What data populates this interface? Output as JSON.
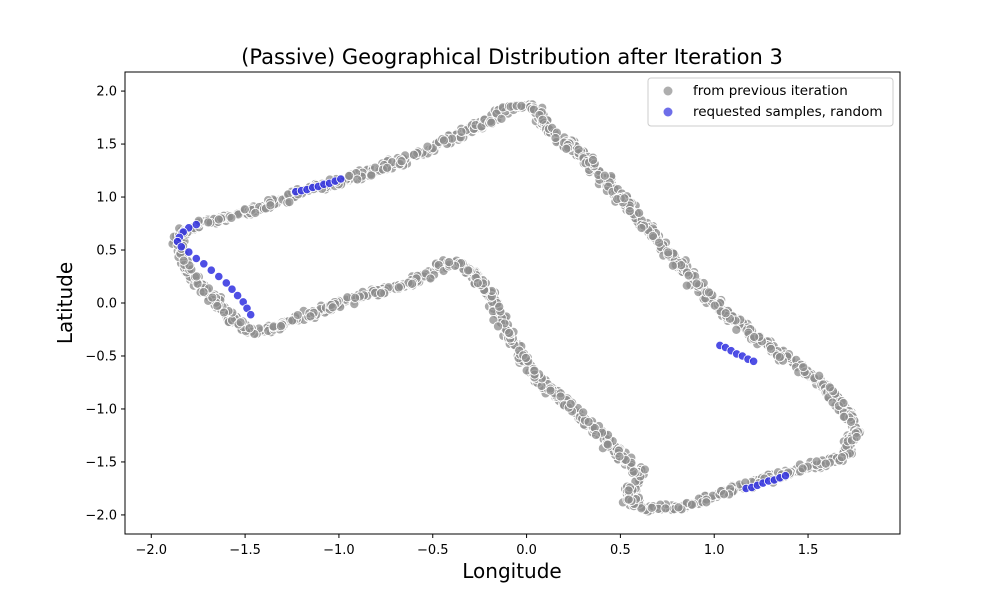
{
  "chart_data": {
    "type": "scatter",
    "title": "(Passive) Geographical Distribution after Iteration 3",
    "xlabel": "Longitude",
    "ylabel": "Latitude",
    "xlim": [
      -2.14,
      1.99
    ],
    "ylim": [
      -2.18,
      2.18
    ],
    "xticks": [
      -2.0,
      -1.5,
      -1.0,
      -0.5,
      0.0,
      0.5,
      1.0,
      1.5
    ],
    "xtick_labels": [
      "−2.0",
      "−1.5",
      "−1.0",
      "−0.5",
      "0.0",
      "0.5",
      "1.0",
      "1.5"
    ],
    "yticks": [
      -2.0,
      -1.5,
      -1.0,
      -0.5,
      0.0,
      0.5,
      1.0,
      1.5,
      2.0
    ],
    "ytick_labels": [
      "−2.0",
      "−1.5",
      "−1.0",
      "−0.5",
      "0.0",
      "0.5",
      "1.0",
      "1.5",
      "2.0"
    ],
    "grid": false,
    "legend_position": "top-right",
    "series": [
      {
        "name": "from previous iteration",
        "color": "#8c8c8c",
        "edge_color": "#ffffff",
        "path": [
          [
            -1.2,
            1.05
          ],
          [
            -0.8,
            1.25
          ],
          [
            -0.45,
            1.5
          ],
          [
            -0.3,
            1.65
          ],
          [
            -0.2,
            1.7
          ],
          [
            -0.1,
            1.85
          ],
          [
            0.05,
            1.85
          ],
          [
            0.1,
            1.65
          ],
          [
            0.3,
            1.4
          ],
          [
            0.5,
            1.0
          ],
          [
            0.75,
            0.5
          ],
          [
            1.0,
            0.0
          ],
          [
            1.2,
            -0.3
          ],
          [
            1.45,
            -0.6
          ],
          [
            1.6,
            -0.8
          ],
          [
            1.72,
            -1.05
          ],
          [
            1.75,
            -1.2
          ],
          [
            1.7,
            -1.45
          ],
          [
            1.4,
            -1.6
          ],
          [
            1.1,
            -1.75
          ],
          [
            0.9,
            -1.9
          ],
          [
            0.75,
            -1.95
          ],
          [
            0.55,
            -1.9
          ],
          [
            0.6,
            -1.6
          ],
          [
            0.45,
            -1.35
          ],
          [
            0.25,
            -1.0
          ],
          [
            0.05,
            -0.7
          ],
          [
            -0.1,
            -0.3
          ],
          [
            -0.2,
            0.1
          ],
          [
            -0.3,
            0.3
          ],
          [
            -0.4,
            0.4
          ],
          [
            -0.6,
            0.2
          ],
          [
            -1.0,
            0.0
          ],
          [
            -1.3,
            -0.2
          ],
          [
            -1.45,
            -0.3
          ],
          [
            -1.6,
            -0.1
          ],
          [
            -1.7,
            0.1
          ],
          [
            -1.8,
            0.3
          ],
          [
            -1.85,
            0.5
          ],
          [
            -1.85,
            0.65
          ],
          [
            -1.75,
            0.75
          ],
          [
            -1.5,
            0.85
          ],
          [
            -1.3,
            0.97
          ],
          [
            -1.2,
            1.05
          ]
        ]
      },
      {
        "name": "requested samples, random",
        "color": "#3030e0",
        "edge_color": "#ffffff",
        "points": [
          [
            -1.23,
            1.05
          ],
          [
            -1.2,
            1.06
          ],
          [
            -1.17,
            1.07
          ],
          [
            -1.14,
            1.09
          ],
          [
            -1.11,
            1.1
          ],
          [
            -1.08,
            1.12
          ],
          [
            -1.05,
            1.13
          ],
          [
            -1.02,
            1.15
          ],
          [
            -0.99,
            1.17
          ],
          [
            -1.76,
            0.74
          ],
          [
            -1.8,
            0.71
          ],
          [
            -1.83,
            0.67
          ],
          [
            -1.85,
            0.62
          ],
          [
            -1.86,
            0.58
          ],
          [
            -1.84,
            0.53
          ],
          [
            -1.8,
            0.48
          ],
          [
            -1.76,
            0.42
          ],
          [
            -1.72,
            0.37
          ],
          [
            -1.68,
            0.31
          ],
          [
            -1.64,
            0.25
          ],
          [
            -1.6,
            0.19
          ],
          [
            -1.57,
            0.13
          ],
          [
            -1.54,
            0.07
          ],
          [
            -1.51,
            0.01
          ],
          [
            -1.49,
            -0.05
          ],
          [
            -1.47,
            -0.11
          ],
          [
            1.03,
            -0.4
          ],
          [
            1.06,
            -0.42
          ],
          [
            1.09,
            -0.45
          ],
          [
            1.12,
            -0.48
          ],
          [
            1.15,
            -0.5
          ],
          [
            1.18,
            -0.53
          ],
          [
            1.21,
            -0.55
          ],
          [
            1.17,
            -1.75
          ],
          [
            1.2,
            -1.74
          ],
          [
            1.23,
            -1.72
          ],
          [
            1.26,
            -1.7
          ],
          [
            1.29,
            -1.68
          ],
          [
            1.32,
            -1.67
          ],
          [
            1.35,
            -1.65
          ],
          [
            1.38,
            -1.63
          ]
        ]
      }
    ]
  }
}
